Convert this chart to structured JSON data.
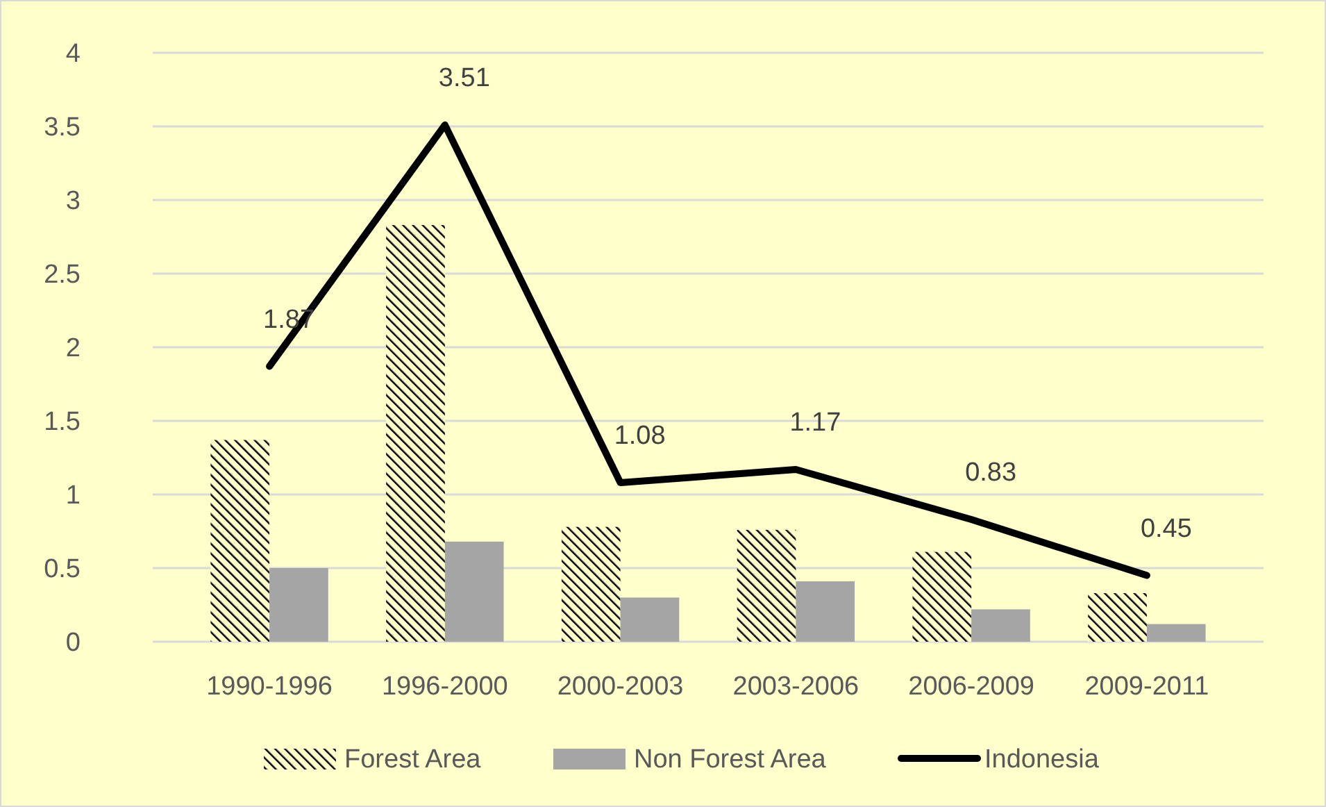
{
  "chart_data": {
    "type": "bar",
    "categories": [
      "1990-1996",
      "1996-2000",
      "2000-2003",
      "2003-2006",
      "2006-2009",
      "2009-2011"
    ],
    "series": [
      {
        "name": "Forest Area",
        "color": "#000000",
        "values": [
          1.37,
          2.83,
          0.78,
          0.76,
          0.61,
          0.33
        ]
      },
      {
        "name": "Non Forest Area",
        "color": "#a5a5a5",
        "values": [
          0.5,
          0.68,
          0.3,
          0.41,
          0.22,
          0.12
        ]
      },
      {
        "name": "Indonesia",
        "type": "line",
        "color": "#000000",
        "values": [
          1.87,
          3.51,
          1.08,
          1.17,
          0.83,
          0.45
        ],
        "value_labels": [
          "1.87",
          "3.51",
          "1.08",
          "1.17",
          "0.83",
          "0.45"
        ]
      }
    ],
    "ylim": [
      0,
      4
    ],
    "yticks": [
      0,
      0.5,
      1,
      1.5,
      2,
      2.5,
      3,
      3.5,
      4
    ],
    "grid": "y",
    "legend": "bottom",
    "marker": "none",
    "line_style": "solid"
  }
}
